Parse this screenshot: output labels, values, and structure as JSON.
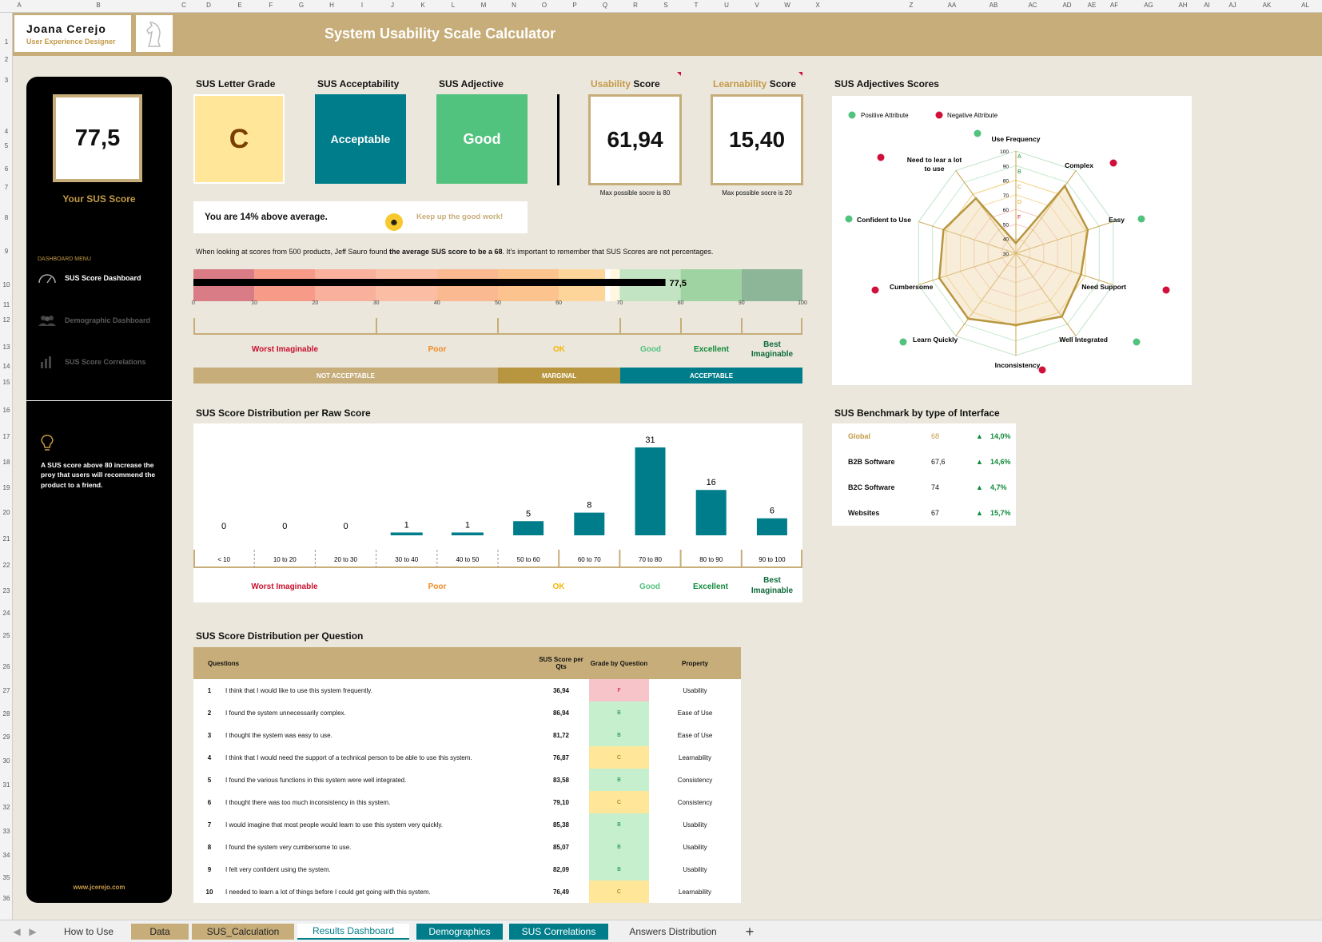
{
  "header": {
    "name": "Joana Cerejo",
    "role": "User Experience Designer",
    "title": "System Usability Scale Calculator"
  },
  "columns": [
    "A",
    "B",
    "C",
    "D",
    "E",
    "F",
    "G",
    "H",
    "I",
    "J",
    "K",
    "L",
    "M",
    "N",
    "O",
    "P",
    "Q",
    "R",
    "S",
    "T",
    "U",
    "V",
    "W",
    "X",
    "Z",
    "AA",
    "AB",
    "AC",
    "AD",
    "AE",
    "AF",
    "AG",
    "AH",
    "AI",
    "AJ",
    "AK",
    "AL"
  ],
  "rows": [
    "1",
    "2",
    "3",
    "4",
    "5",
    "6",
    "7",
    "8",
    "9",
    "10",
    "11",
    "12",
    "13",
    "14",
    "15",
    "16",
    "17",
    "18",
    "19",
    "20",
    "21",
    "22",
    "23",
    "24",
    "25",
    "26",
    "27",
    "28",
    "29",
    "30",
    "31",
    "32",
    "33",
    "34",
    "35",
    "36"
  ],
  "sidebar": {
    "score": "77,5",
    "score_label": "Your SUS Score",
    "menu_header": "DASHBOARD MENU",
    "menu": [
      {
        "label": "SUS Score Dashboard",
        "icon": "gauge-icon",
        "active": true
      },
      {
        "label": "Demographic Dashboard",
        "icon": "users-icon",
        "active": false
      },
      {
        "label": "SUS Score Correlations",
        "icon": "bar-chart-icon",
        "active": false
      }
    ],
    "tip": "A SUS score above 80 increase the proy that users will recommend the product to a friend.",
    "tip_icon": "lightbulb-icon",
    "website": "www.jcerejo.com"
  },
  "summary": {
    "letter_grade_title": "SUS Letter Grade",
    "letter_grade": "C",
    "acceptability_title": "SUS Acceptability",
    "acceptability": "Acceptable",
    "adjective_title": "SUS Adjective",
    "adjective": "Good",
    "usability_title_a": "Usability",
    "usability_title_b": " Score",
    "usability": "61,94",
    "usability_caption": "Max possible socre is 80",
    "learnability_title_a": "Learnability",
    "learnability_title_b": " Score",
    "learnability": "15,40",
    "learnability_caption": "Max possible socre is 20",
    "above_avg": "You are 14% above average.",
    "keep_up": "Keep up the good work!",
    "note_pre": "When looking at scores from 500 products, Jeff Sauro found ",
    "note_bold": "the average SUS score to be a 68",
    "note_post": ". It's important to remember that SUS Scores are not percentages.",
    "bar_value": 77.5,
    "bar_label": "77,5",
    "average_marker": 68,
    "ticks": [
      "0",
      "10",
      "20",
      "30",
      "40",
      "50",
      "60",
      "70",
      "80",
      "90",
      "100"
    ],
    "adjective_scale": [
      "Worst Imaginable",
      "Poor",
      "OK",
      "Good",
      "Excellent",
      "Best Imaginable"
    ],
    "bands": [
      "NOT ACCEPTABLE",
      "MARGINAL",
      "ACCEPTABLE"
    ]
  },
  "distribution": {
    "title": "SUS Score Distribution per Raw Score",
    "chart_data": {
      "type": "bar",
      "categories": [
        "< 10",
        "10 to 20",
        "20 to 30",
        "30 to 40",
        "40 to 50",
        "50 to 60",
        "60 to 70",
        "70 to 80",
        "80 to 90",
        "90 to 100"
      ],
      "values": [
        0,
        0,
        0,
        1,
        1,
        5,
        8,
        31,
        16,
        6
      ]
    },
    "labels": [
      "0",
      "0",
      "0",
      "1",
      "1",
      "5",
      "8",
      "31",
      "16",
      "6"
    ]
  },
  "radar": {
    "title": "SUS Adjectives Scores",
    "legend_positive": "Positive Attribute",
    "legend_negative": "Negative Attribute",
    "chart_data": {
      "type": "radar",
      "axes": [
        "Use Frequency",
        "Complex",
        "Easy",
        "Need Support",
        "Well Integrated",
        "Inconsistency",
        "Learn Quickly",
        "Cumbersome",
        "Confident to Use",
        "Need to lear a lot to use"
      ],
      "attribute": [
        "positive",
        "negative",
        "positive",
        "negative",
        "positive",
        "negative",
        "positive",
        "negative",
        "positive",
        "negative"
      ],
      "values": [
        36.94,
        86.94,
        81.72,
        76.87,
        83.58,
        79.1,
        85.38,
        85.07,
        82.09,
        76.49
      ],
      "rlim": [
        30,
        100
      ]
    },
    "rings": [
      "100",
      "90",
      "80",
      "70",
      "60",
      "50",
      "40",
      "30"
    ],
    "grades": [
      "A",
      "B",
      "C",
      "D",
      "F"
    ]
  },
  "benchmark": {
    "title": "SUS Benchmark by type of Interface",
    "rows": [
      {
        "name": "Global",
        "score": "68",
        "delta": "14,0%"
      },
      {
        "name": "B2B Software",
        "score": "67,6",
        "delta": "14,6%"
      },
      {
        "name": "B2C Software",
        "score": "74",
        "delta": "4,7%"
      },
      {
        "name": "Websites",
        "score": "67",
        "delta": "15,7%"
      }
    ]
  },
  "questions": {
    "title": "SUS Score Distribution per Question",
    "headers": [
      "Questions",
      "SUS Score per Qts",
      "Grade by Question",
      "Property"
    ],
    "rows": [
      {
        "n": "1",
        "text": "I think that I would like to use this system frequently.",
        "score": "36,94",
        "grade": "F",
        "property": "Usability"
      },
      {
        "n": "2",
        "text": "I found the system unnecessarily complex.",
        "score": "86,94",
        "grade": "B",
        "property": "Ease of Use"
      },
      {
        "n": "3",
        "text": "I thought the system was easy to use.",
        "score": "81,72",
        "grade": "B",
        "property": "Ease of Use"
      },
      {
        "n": "4",
        "text": "I think that I would need the support of a technical person to be able to use this system.",
        "score": "76,87",
        "grade": "C",
        "property": "Learnability"
      },
      {
        "n": "5",
        "text": "I found the various functions in this system were well integrated.",
        "score": "83,58",
        "grade": "B",
        "property": "Consistency"
      },
      {
        "n": "6",
        "text": "I thought there was too much inconsistency in this system.",
        "score": "79,10",
        "grade": "C",
        "property": "Consistency"
      },
      {
        "n": "7",
        "text": "I would imagine that most people would learn to use this system very quickly.",
        "score": "85,38",
        "grade": "B",
        "property": "Usability"
      },
      {
        "n": "8",
        "text": "I found the system very cumbersome to use.",
        "score": "85,07",
        "grade": "B",
        "property": "Usability"
      },
      {
        "n": "9",
        "text": "I felt very confident using the system.",
        "score": "82,09",
        "grade": "B",
        "property": "Usability"
      },
      {
        "n": "10",
        "text": "I needed to learn a lot of things before I could get going with this system.",
        "score": "76,49",
        "grade": "C",
        "property": "Learnability"
      }
    ]
  },
  "tabs": [
    "How to Use",
    "Data",
    "SUS_Calculation",
    "Results Dashboard",
    "Demographics",
    "SUS Correlations",
    "Answers Distribution"
  ],
  "add_sheet": "+",
  "colors": {
    "gold": "#c7ad79",
    "teal": "#007d8a",
    "green": "#52c27f",
    "yellow": "#ffe699",
    "red": "#d0103a"
  }
}
